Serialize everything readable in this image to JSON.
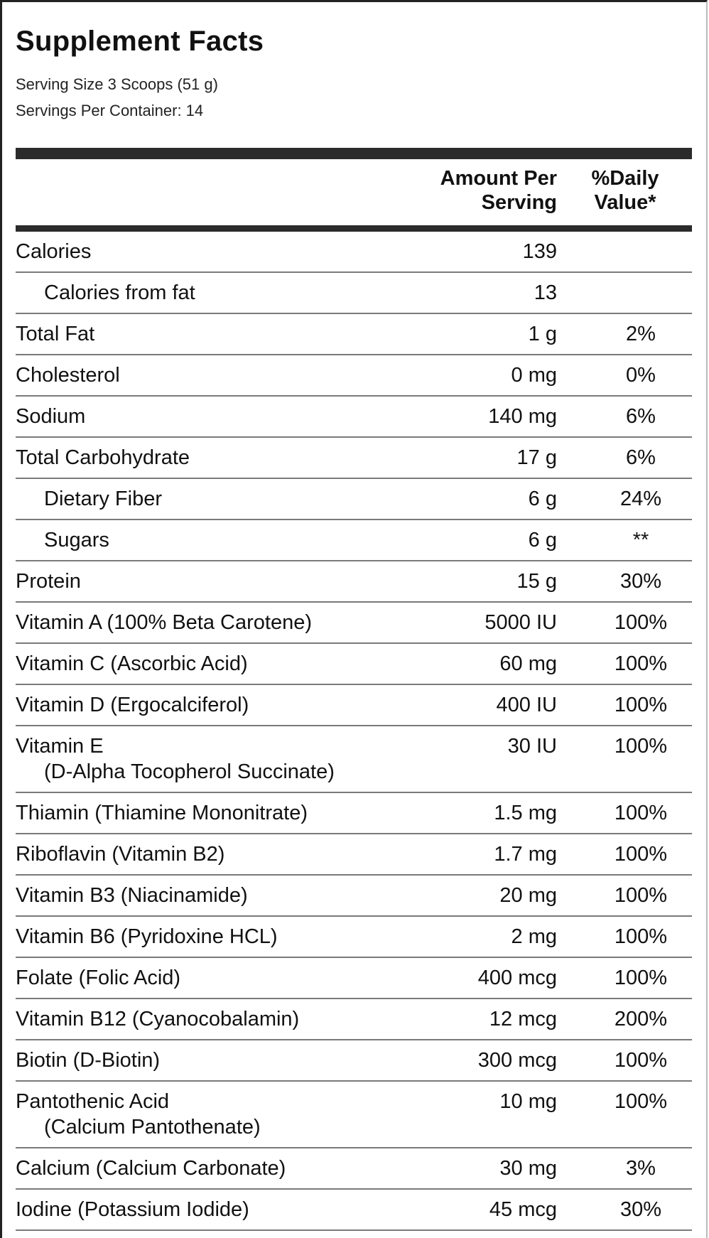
{
  "label": {
    "title": "Supplement Facts",
    "serving_size": "Serving Size 3 Scoops (51 g)",
    "servings_per_container": "Servings Per Container: 14",
    "header": {
      "amount_line1": "Amount Per",
      "amount_line2": "Serving",
      "dv_line1": "%Daily",
      "dv_line2": "Value*"
    },
    "rows": [
      {
        "name": "Calories",
        "sub": "",
        "amount": "139",
        "dv": "",
        "indent": false
      },
      {
        "name": "Calories from fat",
        "sub": "",
        "amount": "13",
        "dv": "",
        "indent": true
      },
      {
        "name": "Total Fat",
        "sub": "",
        "amount": "1 g",
        "dv": "2%",
        "indent": false
      },
      {
        "name": "Cholesterol",
        "sub": "",
        "amount": "0 mg",
        "dv": "0%",
        "indent": false
      },
      {
        "name": "Sodium",
        "sub": "",
        "amount": "140 mg",
        "dv": "6%",
        "indent": false
      },
      {
        "name": "Total Carbohydrate",
        "sub": "",
        "amount": "17 g",
        "dv": "6%",
        "indent": false
      },
      {
        "name": "Dietary Fiber",
        "sub": "",
        "amount": "6 g",
        "dv": "24%",
        "indent": true
      },
      {
        "name": "Sugars",
        "sub": "",
        "amount": "6 g",
        "dv": "**",
        "indent": true
      },
      {
        "name": "Protein",
        "sub": "",
        "amount": "15 g",
        "dv": "30%",
        "indent": false
      },
      {
        "name": "Vitamin A (100% Beta Carotene)",
        "sub": "",
        "amount": "5000 IU",
        "dv": "100%",
        "indent": false
      },
      {
        "name": "Vitamin C (Ascorbic Acid)",
        "sub": "",
        "amount": "60 mg",
        "dv": "100%",
        "indent": false
      },
      {
        "name": "Vitamin D (Ergocalciferol)",
        "sub": "",
        "amount": "400 IU",
        "dv": "100%",
        "indent": false
      },
      {
        "name": "Vitamin E",
        "sub": "(D-Alpha Tocopherol Succinate)",
        "amount": "30 IU",
        "dv": "100%",
        "indent": false
      },
      {
        "name": "Thiamin (Thiamine Mononitrate)",
        "sub": "",
        "amount": "1.5 mg",
        "dv": "100%",
        "indent": false
      },
      {
        "name": "Riboflavin (Vitamin B2)",
        "sub": "",
        "amount": "1.7 mg",
        "dv": "100%",
        "indent": false
      },
      {
        "name": "Vitamin B3 (Niacinamide)",
        "sub": "",
        "amount": "20 mg",
        "dv": "100%",
        "indent": false
      },
      {
        "name": "Vitamin B6 (Pyridoxine HCL)",
        "sub": "",
        "amount": "2 mg",
        "dv": "100%",
        "indent": false
      },
      {
        "name": "Folate (Folic Acid)",
        "sub": "",
        "amount": "400 mcg",
        "dv": "100%",
        "indent": false
      },
      {
        "name": "Vitamin B12 (Cyanocobalamin)",
        "sub": "",
        "amount": "12 mcg",
        "dv": "200%",
        "indent": false
      },
      {
        "name": "Biotin (D-Biotin)",
        "sub": "",
        "amount": "300 mcg",
        "dv": "100%",
        "indent": false
      },
      {
        "name": "Pantothenic Acid",
        "sub": "(Calcium Pantothenate)",
        "amount": "10 mg",
        "dv": "100%",
        "indent": false
      },
      {
        "name": "Calcium (Calcium Carbonate)",
        "sub": "",
        "amount": "30 mg",
        "dv": "3%",
        "indent": false
      },
      {
        "name": "Iodine (Potassium Iodide)",
        "sub": "",
        "amount": "45 mcg",
        "dv": "30%",
        "indent": false
      }
    ]
  }
}
